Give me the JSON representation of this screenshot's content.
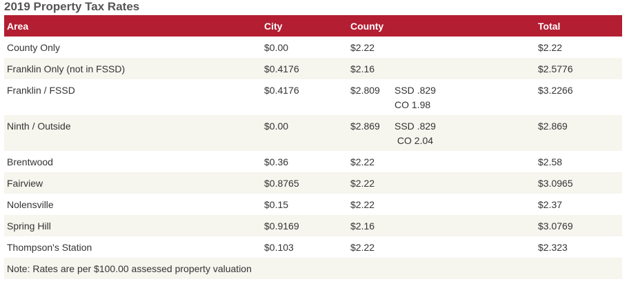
{
  "title": "2019 Property Tax Rates",
  "columns": {
    "area": "Area",
    "city": "City",
    "county": "County",
    "total": "Total"
  },
  "rows": [
    {
      "area": "County Only",
      "city": "$0.00",
      "county": "$2.22",
      "total": "$2.22"
    },
    {
      "area": "Franklin Only (not in FSSD)",
      "city": "$0.4176",
      "county": "$2.16",
      "total": "$2.5776"
    },
    {
      "area": "Franklin / FSSD",
      "city": "$0.4176",
      "county": "$2.809",
      "split_1": "SSD .829",
      "split_2": "CO 1.98",
      "total": "$3.2266"
    },
    {
      "area": "Ninth / Outside",
      "city": "$0.00",
      "county": "$2.869",
      "split_1": "SSD .829",
      "split_2": " CO 2.04",
      "total": "$2.869"
    },
    {
      "area": "Brentwood",
      "city": "$0.36",
      "county": "$2.22",
      "total": "$2.58"
    },
    {
      "area": "Fairview",
      "city": "$0.8765",
      "county": "$2.22",
      "total": "$3.0965"
    },
    {
      "area": "Nolensville",
      "city": "$0.15",
      "county": "$2.22",
      "total": "$2.37"
    },
    {
      "area": "Spring Hill",
      "city": "$0.9169",
      "county": "$2.16",
      "total": "$3.0769"
    },
    {
      "area": "Thompson's Station",
      "city": "$0.103",
      "county": "$2.22",
      "total": "$2.323"
    }
  ],
  "note": "Note: Rates are per $100.00 assessed property valuation",
  "colors": {
    "header_bg": "#b31e32",
    "stripe_bg": "#f6f5ee",
    "title": "#555555"
  }
}
